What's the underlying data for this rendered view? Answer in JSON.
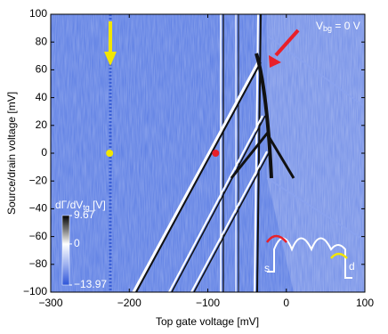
{
  "chart_data": {
    "type": "heatmap",
    "xlabel": "Top gate voltage [mV]",
    "ylabel": "Source/drain voltage [mV]",
    "xlim": [
      -300,
      100
    ],
    "ylim": [
      -100,
      100
    ],
    "xticks": [
      {
        "value": -300,
        "label": "−300"
      },
      {
        "value": -200,
        "label": "−200"
      },
      {
        "value": -100,
        "label": "−100"
      },
      0,
      100
    ],
    "yticks": [
      {
        "value": -100,
        "label": "−100"
      },
      {
        "value": -80,
        "label": "−80"
      },
      {
        "value": -60,
        "label": "−60"
      },
      {
        "value": -40,
        "label": "−40"
      },
      {
        "value": -20,
        "label": "−20"
      },
      0,
      20,
      40,
      60,
      80,
      100
    ],
    "annotation": {
      "base": "V",
      "sub": "bg",
      "rest": " = 0 V"
    },
    "colorbar": {
      "base": "dΓ/dV",
      "sub": "tg",
      "rest": " [V]",
      "clim": [
        -13.97,
        9.67
      ],
      "ticks": [
        9.67,
        0,
        {
          "value": -13.97,
          "label": "−13.97"
        }
      ]
    },
    "points": [
      {
        "x": -225,
        "y": 0,
        "color": "#f2e600"
      },
      {
        "x": -90,
        "y": 0,
        "color": "#e8202a"
      }
    ],
    "inset_labels": [
      "s",
      "d"
    ]
  }
}
